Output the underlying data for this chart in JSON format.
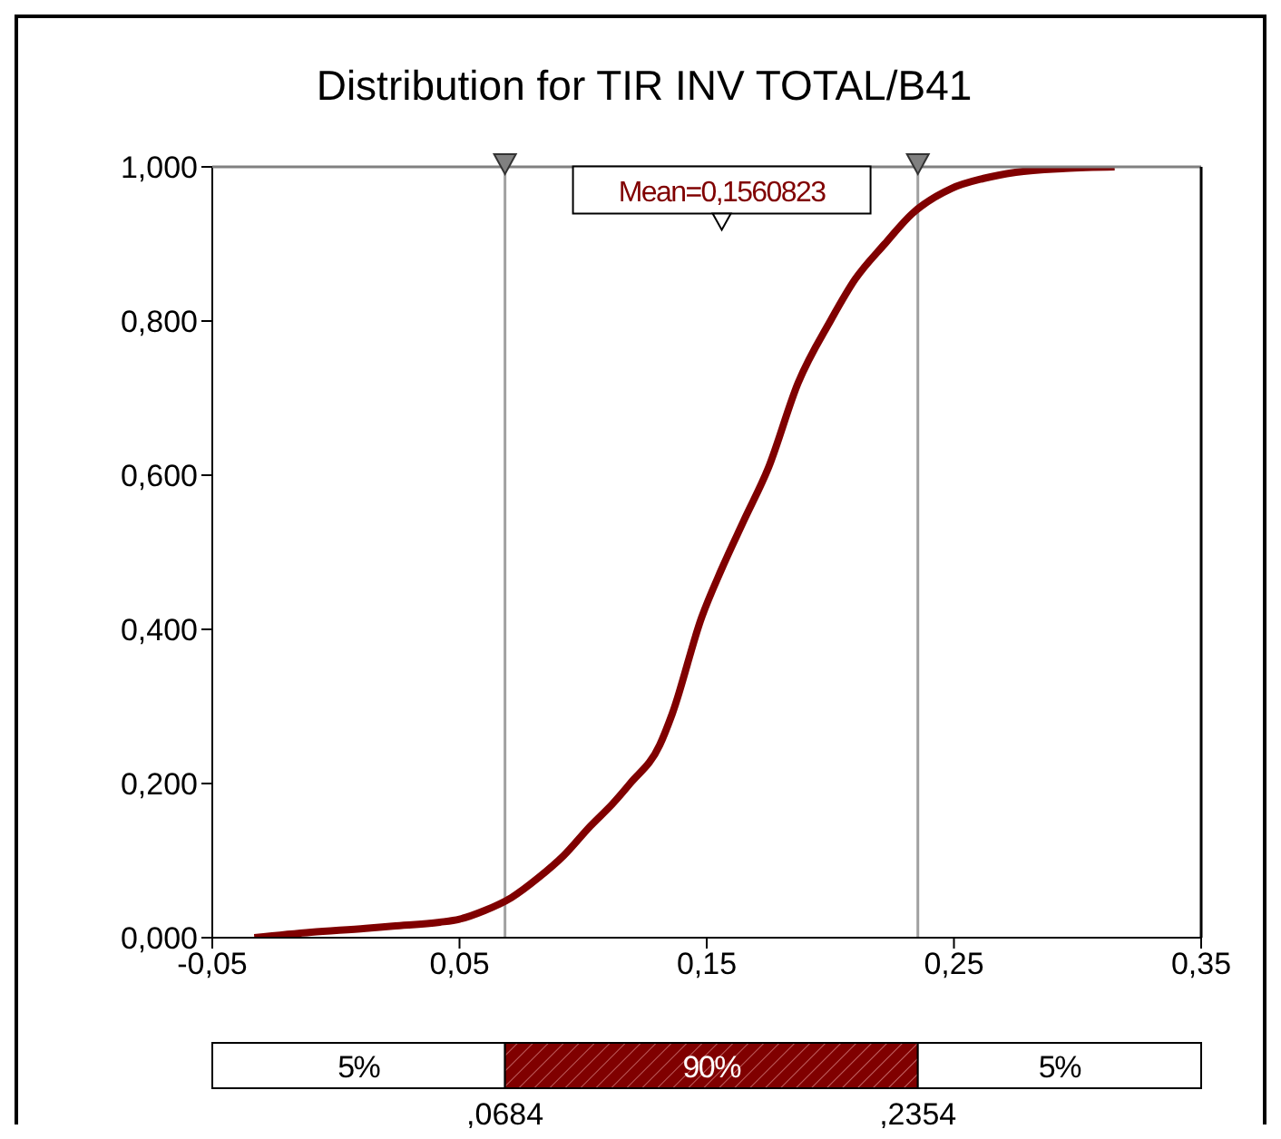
{
  "chart_data": {
    "type": "line",
    "title": "Distribution for TIR INV TOTAL/B41",
    "x": [
      -0.033,
      -0.01,
      0.012,
      0.023,
      0.042,
      0.05,
      0.06,
      0.071,
      0.082,
      0.092,
      0.103,
      0.112,
      0.119,
      0.131,
      0.136,
      0.148,
      0.156,
      0.165,
      0.175,
      0.187,
      0.2,
      0.21,
      0.222,
      0.233,
      0.249,
      0.262,
      0.275,
      0.295,
      0.315
    ],
    "series": [
      {
        "color": "#800000",
        "values": [
          0.0,
          0.007,
          0.012,
          0.015,
          0.02,
          0.024,
          0.035,
          0.052,
          0.078,
          0.106,
          0.145,
          0.174,
          0.2,
          0.25,
          0.29,
          0.416,
          0.478,
          0.541,
          0.61,
          0.72,
          0.8,
          0.854,
          0.9,
          0.939,
          0.972,
          0.985,
          0.993,
          0.998,
          1.0
        ]
      }
    ],
    "xlim": [
      -0.05,
      0.35
    ],
    "xticks": [
      {
        "value": -0.05,
        "label": "-0,05"
      },
      {
        "value": 0.05,
        "label": "0,05"
      },
      {
        "value": 0.15,
        "label": "0,15"
      },
      {
        "value": 0.25,
        "label": "0,25"
      },
      {
        "value": 0.35,
        "label": "0,35"
      }
    ],
    "ylim": [
      0,
      1
    ],
    "yticks": [
      {
        "value": 0,
        "label": "0,000"
      },
      {
        "value": 0.2,
        "label": "0,200"
      },
      {
        "value": 0.4,
        "label": "0,400"
      },
      {
        "value": 0.6,
        "label": "0,600"
      },
      {
        "value": 0.8,
        "label": "0,800"
      },
      {
        "value": 1,
        "label": "1,000"
      }
    ],
    "ref_lines": [
      {
        "axis": "x",
        "value": 0.0684,
        "color": "#a0a0a0"
      },
      {
        "axis": "x",
        "value": 0.2354,
        "color": "#a0a0a0"
      }
    ],
    "annotations": [
      {
        "text": "Mean=0,1560823",
        "x": 0.1560823,
        "y": 0.93
      },
      "5%",
      "90%",
      "5%",
      ",0684",
      ",2354"
    ],
    "marker": "none",
    "line_style": "solid"
  }
}
